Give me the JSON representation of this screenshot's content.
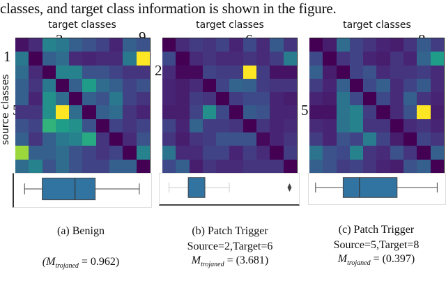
{
  "top_text": "classes, and target class information is shown in the figure.",
  "axis_title": "target classes",
  "ylabel": "source classes",
  "panels": [
    {
      "marks": {
        "target": "3",
        "target2": "9",
        "source": "1",
        "source2": "5"
      },
      "caption": "(a) Benign",
      "sub": "",
      "m_prefix": "(M",
      "m_sub": "trojaned",
      "m_value": " = 0.962)",
      "matrix": [
        [
          0.05,
          0.12,
          0.45,
          0.4,
          0.3,
          0.25,
          0.2,
          0.1,
          0.3,
          0.25
        ],
        [
          0.4,
          0.0,
          0.3,
          0.35,
          0.12,
          0.1,
          0.12,
          0.12,
          0.4,
          1.0
        ],
        [
          0.35,
          0.12,
          0.0,
          0.45,
          0.45,
          0.25,
          0.25,
          0.2,
          0.15,
          0.15
        ],
        [
          0.3,
          0.15,
          0.4,
          0.0,
          0.3,
          0.55,
          0.35,
          0.3,
          0.2,
          0.25
        ],
        [
          0.3,
          0.1,
          0.5,
          0.35,
          0.0,
          0.3,
          0.25,
          0.4,
          0.2,
          0.15
        ],
        [
          0.15,
          0.15,
          0.5,
          1.0,
          0.35,
          0.0,
          0.3,
          0.35,
          0.15,
          0.1
        ],
        [
          0.25,
          0.2,
          0.65,
          0.55,
          0.5,
          0.25,
          0.0,
          0.2,
          0.15,
          0.2
        ],
        [
          0.3,
          0.15,
          0.3,
          0.4,
          0.45,
          0.6,
          0.15,
          0.0,
          0.12,
          0.25
        ],
        [
          0.85,
          0.3,
          0.3,
          0.35,
          0.25,
          0.2,
          0.15,
          0.2,
          0.0,
          0.45
        ],
        [
          0.35,
          0.45,
          0.25,
          0.35,
          0.25,
          0.2,
          0.2,
          0.3,
          0.3,
          0.0
        ]
      ],
      "box": {
        "whisker_low": 0.04,
        "q1": 0.18,
        "median": 0.44,
        "q3": 0.6,
        "whisker_high": 0.95,
        "outliers": []
      }
    },
    {
      "marks": {
        "target": "6",
        "source": "2"
      },
      "caption": "(b) Patch Trigger",
      "sub": "Source=2,Target=6",
      "m_prefix": "M",
      "m_sub": "trojaned",
      "m_value": " = (3.681)",
      "matrix": [
        [
          0.0,
          0.12,
          0.18,
          0.15,
          0.2,
          0.1,
          0.22,
          0.12,
          0.28,
          0.15
        ],
        [
          0.22,
          0.0,
          0.12,
          0.15,
          0.12,
          0.12,
          0.15,
          0.12,
          0.18,
          0.42
        ],
        [
          0.12,
          0.02,
          0.02,
          0.2,
          0.18,
          0.18,
          1.0,
          0.18,
          0.05,
          0.05
        ],
        [
          0.1,
          0.08,
          0.12,
          0.0,
          0.2,
          0.32,
          0.3,
          0.18,
          0.15,
          0.15
        ],
        [
          0.1,
          0.08,
          0.18,
          0.15,
          0.0,
          0.18,
          0.22,
          0.22,
          0.1,
          0.08
        ],
        [
          0.08,
          0.08,
          0.2,
          0.5,
          0.22,
          0.0,
          0.28,
          0.25,
          0.1,
          0.1
        ],
        [
          0.2,
          0.1,
          0.32,
          0.18,
          0.18,
          0.15,
          0.0,
          0.15,
          0.1,
          0.12
        ],
        [
          0.15,
          0.08,
          0.15,
          0.18,
          0.25,
          0.25,
          0.25,
          0.02,
          0.1,
          0.15
        ],
        [
          0.38,
          0.12,
          0.12,
          0.2,
          0.2,
          0.1,
          0.18,
          0.12,
          0.0,
          0.18
        ],
        [
          0.22,
          0.3,
          0.08,
          0.15,
          0.12,
          0.12,
          0.15,
          0.15,
          0.15,
          0.0
        ]
      ],
      "box": {
        "whisker_low": 0.03,
        "q1": 0.18,
        "median": 0.25,
        "q3": 0.31,
        "whisker_high": 0.5,
        "outliers": [
          0.97
        ]
      }
    },
    {
      "marks": {
        "target": "8",
        "source": "5"
      },
      "caption": "(c) Patch Trigger",
      "sub": "Source=5,Target=8",
      "m_prefix": "M",
      "m_sub": "trojaned",
      "m_value": " = (0.397)",
      "matrix": [
        [
          0.0,
          0.08,
          0.35,
          0.2,
          0.15,
          0.1,
          0.08,
          0.15,
          0.28,
          0.18
        ],
        [
          0.22,
          0.0,
          0.15,
          0.2,
          0.1,
          0.08,
          0.15,
          0.1,
          0.32,
          0.55
        ],
        [
          0.3,
          0.08,
          0.0,
          0.2,
          0.25,
          0.12,
          0.15,
          0.15,
          0.18,
          0.12
        ],
        [
          0.18,
          0.1,
          0.3,
          0.0,
          0.22,
          0.3,
          0.12,
          0.2,
          0.28,
          0.12
        ],
        [
          0.1,
          0.08,
          0.38,
          0.22,
          0.0,
          0.22,
          0.12,
          0.3,
          0.15,
          0.1
        ],
        [
          0.05,
          0.05,
          0.38,
          0.45,
          0.18,
          0.0,
          0.12,
          0.25,
          1.0,
          0.08
        ],
        [
          0.12,
          0.1,
          0.38,
          0.45,
          0.15,
          0.15,
          0.0,
          0.12,
          0.15,
          0.1
        ],
        [
          0.18,
          0.1,
          0.25,
          0.2,
          0.42,
          0.2,
          0.08,
          0.0,
          0.2,
          0.15
        ],
        [
          0.38,
          0.25,
          0.22,
          0.45,
          0.15,
          0.12,
          0.25,
          0.15,
          0.0,
          0.3
        ],
        [
          0.3,
          0.25,
          0.18,
          0.2,
          0.15,
          0.1,
          0.08,
          0.25,
          0.3,
          0.0
        ]
      ],
      "box": {
        "whisker_low": 0.01,
        "q1": 0.23,
        "median": 0.36,
        "q3": 0.66,
        "whisker_high": 0.98,
        "outliers": []
      }
    }
  ]
}
